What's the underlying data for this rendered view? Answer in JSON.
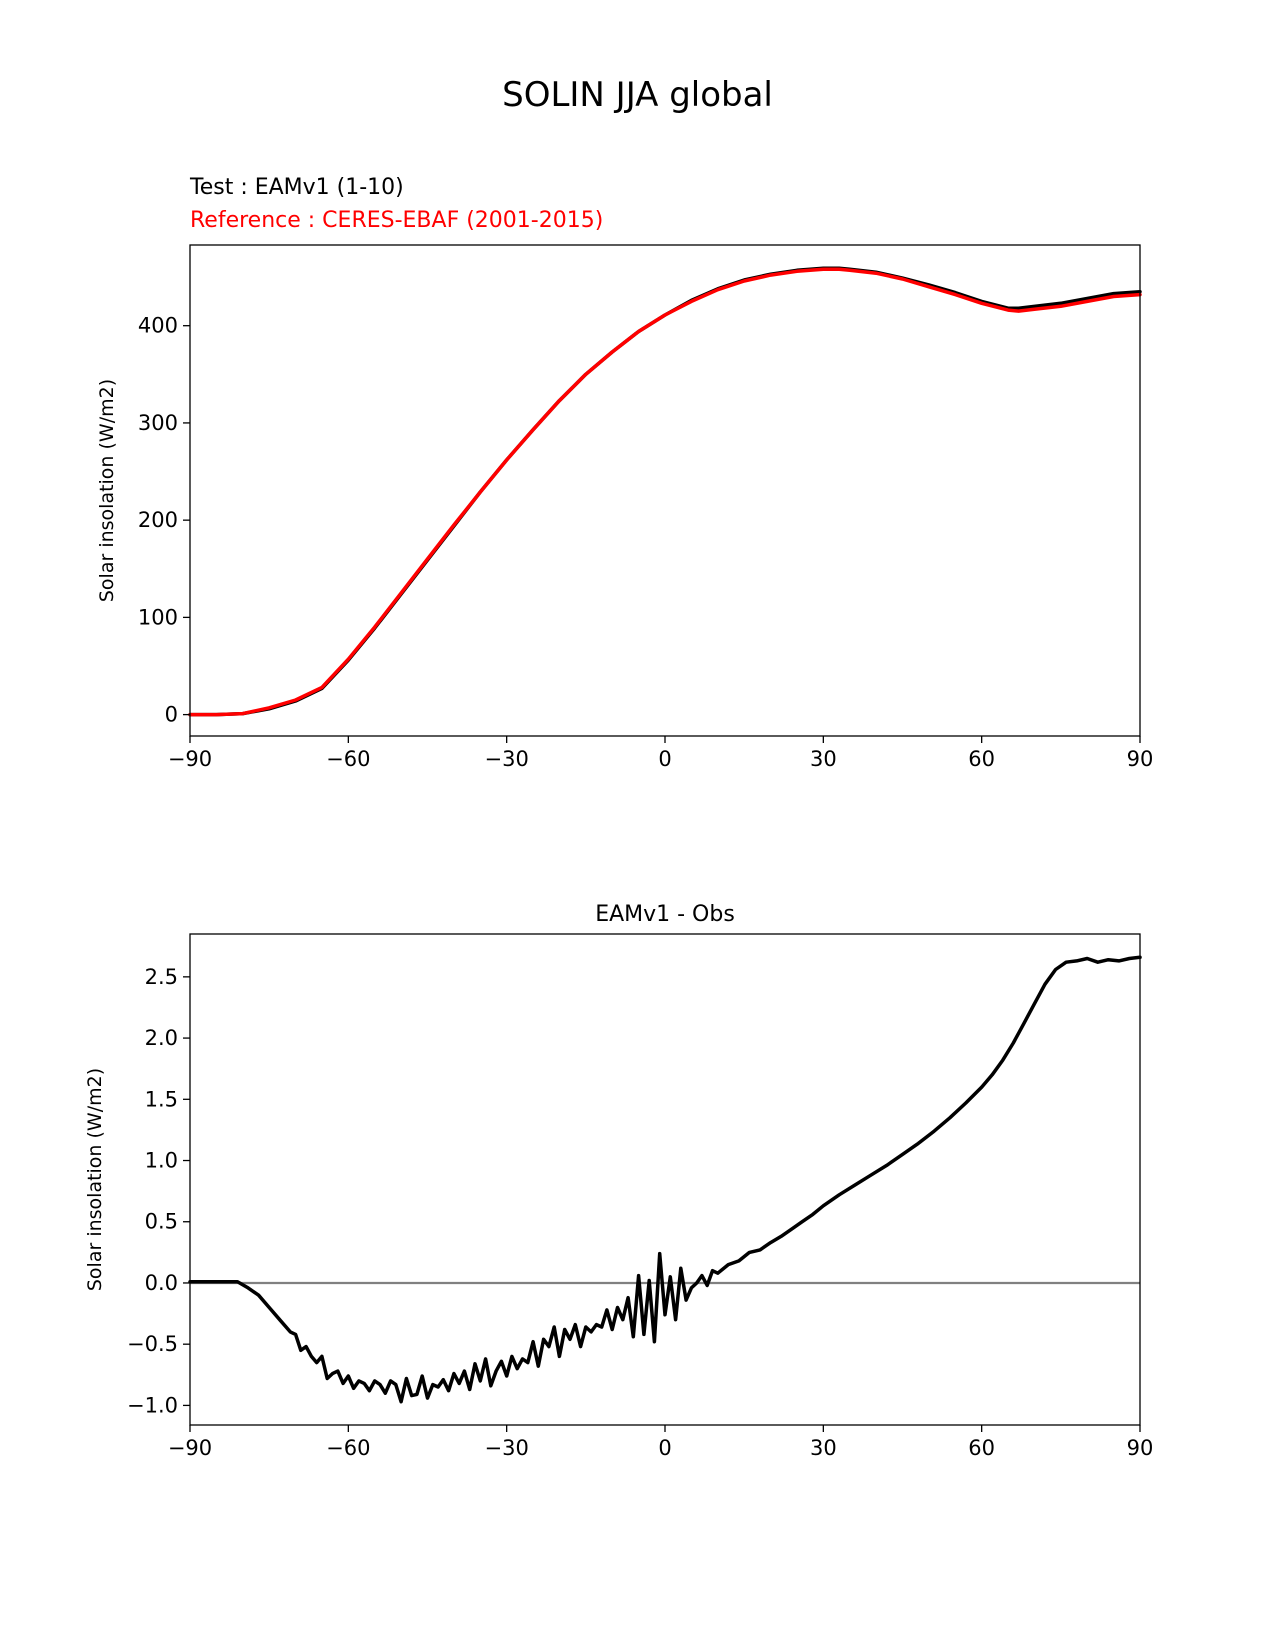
{
  "figure": {
    "title": "SOLIN JJA global"
  },
  "colors": {
    "test": "#000000",
    "reference": "#ff0000",
    "zero_line": "#808080"
  },
  "chart_data": [
    {
      "type": "line",
      "name": "climatology",
      "title": "",
      "legend": {
        "test_label": "Test : EAMv1 (1-10)",
        "reference_label": "Reference : CERES-EBAF (2001-2015)",
        "placement": "top-left, above axes"
      },
      "xlabel": "",
      "ylabel": "Solar insolation (W/m2)",
      "xlim": [
        -90,
        90
      ],
      "ylim": [
        -22,
        483
      ],
      "xticks": [
        -90,
        -60,
        -30,
        0,
        30,
        60,
        90
      ],
      "xtick_labels": [
        "−90",
        "−60",
        "−30",
        "0",
        "30",
        "60",
        "90"
      ],
      "yticks": [
        0,
        100,
        200,
        300,
        400
      ],
      "ytick_labels": [
        "0",
        "100",
        "200",
        "300",
        "400"
      ],
      "x": [
        -90,
        -85,
        -80,
        -75,
        -70,
        -65,
        -60,
        -55,
        -50,
        -45,
        -40,
        -35,
        -30,
        -25,
        -20,
        -15,
        -10,
        -5,
        0,
        5,
        10,
        15,
        20,
        25,
        30,
        33,
        35,
        40,
        45,
        50,
        55,
        60,
        65,
        67,
        70,
        75,
        80,
        85,
        90
      ],
      "series": [
        {
          "name": "Test : EAMv1 (1-10)",
          "values": [
            0,
            0,
            1,
            6,
            14,
            27,
            56,
            89,
            124,
            159,
            194,
            229,
            262,
            293,
            323,
            350,
            373,
            394,
            411,
            426,
            438,
            447,
            453,
            457,
            459,
            459,
            458,
            455,
            449,
            442,
            434,
            425,
            418,
            418,
            420,
            423,
            428,
            433,
            435
          ]
        },
        {
          "name": "Reference : CERES-EBAF (2001-2015)",
          "values": [
            0,
            0,
            1,
            7,
            15,
            28,
            57,
            90,
            125,
            160,
            195,
            229,
            262,
            293,
            323,
            350,
            373,
            394,
            411,
            425,
            437,
            446,
            452,
            456,
            458,
            458,
            457,
            454,
            448,
            440,
            432,
            423,
            416,
            415,
            417,
            420,
            425,
            430,
            432
          ]
        }
      ]
    },
    {
      "type": "line",
      "name": "difference",
      "title": "EAMv1 - Obs",
      "xlabel": "",
      "ylabel": "Solar insolation (W/m2)",
      "xlim": [
        -90,
        90
      ],
      "ylim": [
        -1.16,
        2.85
      ],
      "xticks": [
        -90,
        -60,
        -30,
        0,
        30,
        60,
        90
      ],
      "xtick_labels": [
        "−90",
        "−60",
        "−30",
        "0",
        "30",
        "60",
        "90"
      ],
      "yticks": [
        -1.0,
        -0.5,
        0.0,
        0.5,
        1.0,
        1.5,
        2.0,
        2.5
      ],
      "ytick_labels": [
        "−1.0",
        "−0.5",
        "0.0",
        "0.5",
        "1.0",
        "1.5",
        "2.0",
        "2.5"
      ],
      "zero_line": 0,
      "x": [
        -90,
        -85,
        -81,
        -79,
        -77,
        -75,
        -73,
        -71,
        -70,
        -69,
        -68,
        -67,
        -66,
        -65,
        -64,
        -63,
        -62,
        -61,
        -60,
        -59,
        -58,
        -57,
        -56,
        -55,
        -54,
        -53,
        -52,
        -51,
        -50,
        -49,
        -48,
        -47,
        -46,
        -45,
        -44,
        -43,
        -42,
        -41,
        -40,
        -39,
        -38,
        -37,
        -36,
        -35,
        -34,
        -33,
        -32,
        -31,
        -30,
        -29,
        -28,
        -27,
        -26,
        -25,
        -24,
        -23,
        -22,
        -21,
        -20,
        -19,
        -18,
        -17,
        -16,
        -15,
        -14,
        -13,
        -12,
        -11,
        -10,
        -9,
        -8,
        -7,
        -6,
        -5,
        -4,
        -3,
        -2,
        -1,
        0,
        1,
        2,
        3,
        4,
        5,
        6,
        7,
        8,
        9,
        10,
        12,
        14,
        16,
        18,
        20,
        22,
        24,
        26,
        28,
        30,
        33,
        36,
        39,
        42,
        45,
        48,
        51,
        54,
        57,
        60,
        62,
        64,
        66,
        68,
        70,
        72,
        74,
        76,
        78,
        80,
        82,
        84,
        86,
        88,
        90
      ],
      "series": [
        {
          "name": "EAMv1 - Obs",
          "values": [
            0.01,
            0.01,
            0.01,
            -0.04,
            -0.1,
            -0.2,
            -0.3,
            -0.4,
            -0.42,
            -0.55,
            -0.52,
            -0.6,
            -0.65,
            -0.6,
            -0.78,
            -0.74,
            -0.72,
            -0.82,
            -0.76,
            -0.86,
            -0.8,
            -0.82,
            -0.88,
            -0.8,
            -0.83,
            -0.9,
            -0.8,
            -0.83,
            -0.97,
            -0.78,
            -0.92,
            -0.91,
            -0.76,
            -0.94,
            -0.83,
            -0.85,
            -0.79,
            -0.88,
            -0.74,
            -0.82,
            -0.72,
            -0.87,
            -0.66,
            -0.8,
            -0.62,
            -0.84,
            -0.72,
            -0.64,
            -0.76,
            -0.6,
            -0.7,
            -0.62,
            -0.65,
            -0.48,
            -0.68,
            -0.46,
            -0.52,
            -0.36,
            -0.6,
            -0.38,
            -0.46,
            -0.34,
            -0.52,
            -0.36,
            -0.4,
            -0.34,
            -0.36,
            -0.22,
            -0.38,
            -0.2,
            -0.3,
            -0.12,
            -0.44,
            0.06,
            -0.42,
            0.02,
            -0.48,
            0.24,
            -0.26,
            0.05,
            -0.3,
            0.12,
            -0.14,
            -0.04,
            0.0,
            0.06,
            -0.02,
            0.1,
            0.08,
            0.15,
            0.18,
            0.25,
            0.27,
            0.33,
            0.38,
            0.44,
            0.5,
            0.56,
            0.63,
            0.72,
            0.8,
            0.88,
            0.96,
            1.05,
            1.14,
            1.24,
            1.35,
            1.47,
            1.6,
            1.7,
            1.82,
            1.96,
            2.12,
            2.28,
            2.44,
            2.56,
            2.62,
            2.63,
            2.65,
            2.62,
            2.64,
            2.63,
            2.65,
            2.66
          ]
        }
      ]
    }
  ]
}
